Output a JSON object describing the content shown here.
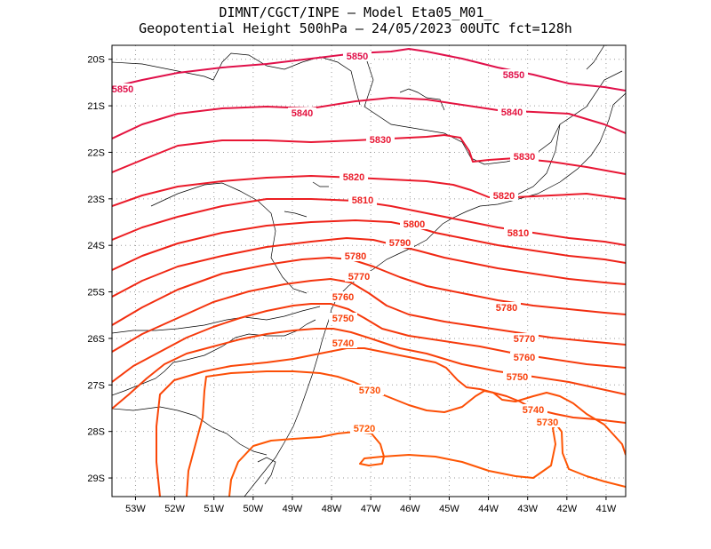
{
  "header": {
    "line1": "DIMNT/CGCT/INPE –  Model Eta05_M01_",
    "line2": "Geopotential Height 500hPa –  24/05/2023 00UTC fct=128h"
  },
  "axes": {
    "lat_labels": [
      "20S",
      "21S",
      "22S",
      "23S",
      "24S",
      "25S",
      "26S",
      "27S",
      "28S",
      "29S"
    ],
    "lon_labels": [
      "53W",
      "52W",
      "51W",
      "50W",
      "49W",
      "48W",
      "47W",
      "46W",
      "45W",
      "44W",
      "43W",
      "42W",
      "41W"
    ],
    "lon_range": [
      -53.6,
      -40.5
    ],
    "lat_range": [
      -29.4,
      -19.7
    ],
    "grid": true,
    "grid_style": "dotted"
  },
  "chart_data": {
    "type": "contour",
    "variable": "Geopotential Height 500hPa",
    "levels": [
      5720,
      5730,
      5740,
      5750,
      5760,
      5770,
      5780,
      5790,
      5800,
      5810,
      5820,
      5830,
      5840,
      5850
    ],
    "colors": {
      "5850": "#e0104a",
      "5840": "#e41440",
      "5830": "#e81634",
      "5820": "#ea1a2a",
      "5810": "#ec1e22",
      "5800": "#ee2218",
      "5790": "#f02814",
      "5780": "#f22e10",
      "5770": "#f4340e",
      "5760": "#f63a0c",
      "5750": "#f8400a",
      "5740": "#fa4608",
      "5730": "#fc4e06",
      "5720": "#fe5604"
    }
  }
}
